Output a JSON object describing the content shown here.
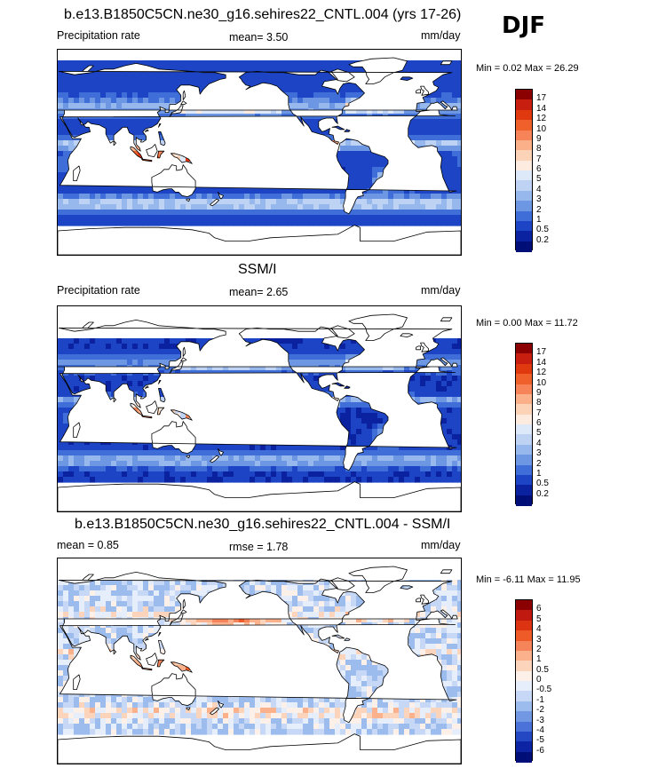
{
  "season": "DJF",
  "panels": [
    {
      "title": "b.e13.B1850C5CN.ne30_g16.sehires22_CNTL.004 (yrs 17-26)",
      "left_label": "Precipitation rate",
      "mid_label": "mean=   3.50",
      "units": "mm/day",
      "minmax": "Min =   0.02 Max =  26.29",
      "levels": [
        "17",
        "14",
        "12",
        "10",
        "9",
        "8",
        "7",
        "6",
        "5",
        "4",
        "3",
        "2",
        "1",
        "0.5",
        "0.2"
      ],
      "colors": [
        "#8b0000",
        "#c81e0f",
        "#e0380f",
        "#f0602a",
        "#f68458",
        "#fbb08a",
        "#fcd3b7",
        "#fdebe0",
        "#dde8f8",
        "#bed2f3",
        "#97b8ec",
        "#6e97e3",
        "#3f6ed8",
        "#1c44c4",
        "#0a22a0",
        "#000e78"
      ],
      "map_style": "model"
    },
    {
      "title": "SSM/I",
      "left_label": "Precipitation rate",
      "mid_label": "mean=   2.65",
      "units": "mm/day",
      "minmax": "Min =   0.00 Max =  11.72",
      "levels": [
        "17",
        "14",
        "12",
        "10",
        "9",
        "8",
        "7",
        "6",
        "5",
        "4",
        "3",
        "2",
        "1",
        "0.5",
        "0.2"
      ],
      "colors": [
        "#8b0000",
        "#c81e0f",
        "#e0380f",
        "#f0602a",
        "#f68458",
        "#fbb08a",
        "#fcd3b7",
        "#fdebe0",
        "#dde8f8",
        "#bed2f3",
        "#97b8ec",
        "#6e97e3",
        "#3f6ed8",
        "#1c44c4",
        "#0a22a0",
        "#000e78"
      ],
      "map_style": "obs"
    },
    {
      "title": "b.e13.B1850C5CN.ne30_g16.sehires22_CNTL.004 - SSM/I",
      "left_label": "mean =   0.85",
      "mid_label": "rmse =   1.78",
      "units": "mm/day",
      "minmax": "Min =  -6.11 Max =  11.95",
      "levels": [
        "6",
        "5",
        "4",
        "3",
        "2",
        "1",
        "0.5",
        "0",
        "-0.5",
        "-1",
        "-2",
        "-3",
        "-4",
        "-5",
        "-6"
      ],
      "colors": [
        "#8b0000",
        "#c01a10",
        "#dc3412",
        "#ee5a28",
        "#f5845a",
        "#fab18c",
        "#fcd4bc",
        "#fdf0e8",
        "#e6eefb",
        "#c6d8f5",
        "#9dbcee",
        "#7298e3",
        "#4a72d8",
        "#2448c4",
        "#0c24a4",
        "#000e78"
      ],
      "map_style": "diff"
    }
  ]
}
